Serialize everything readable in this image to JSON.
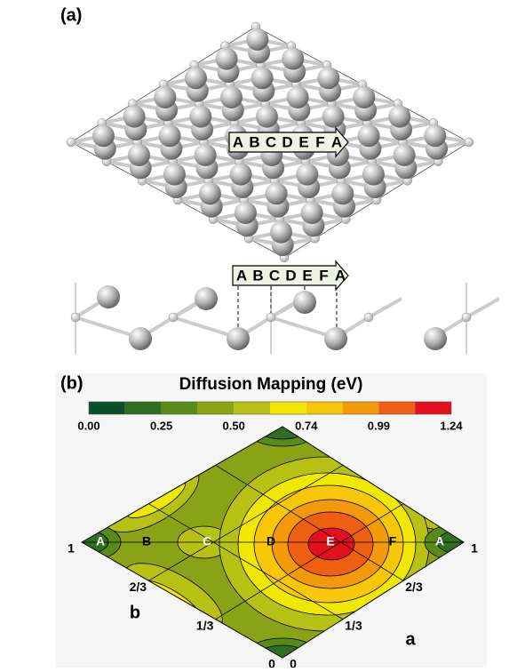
{
  "panel_a": {
    "label": "(a)",
    "top_view_arrow": [
      "A",
      "B",
      "C",
      "D",
      "E",
      "F",
      "A"
    ],
    "side_view_arrow": [
      "A",
      "B",
      "C",
      "D",
      "E",
      "F",
      "A"
    ]
  },
  "panel_b": {
    "label": "(b)",
    "title": "Diffusion Mapping (eV)",
    "colorbar": {
      "colors": [
        "#0a4f2a",
        "#2f6f1f",
        "#5a8a18",
        "#8aa316",
        "#b7c015",
        "#f0e800",
        "#f8c70a",
        "#f39a0c",
        "#ee5f12",
        "#e40f1f"
      ],
      "tick_labels": [
        "0.00",
        "0.25",
        "0.50",
        "0.74",
        "0.99",
        "1.24"
      ]
    },
    "sites": [
      "A",
      "B",
      "C",
      "D",
      "E",
      "F",
      "A"
    ],
    "axis_a": {
      "name": "a",
      "ticks": [
        "0",
        "1/3",
        "2/3",
        "1"
      ]
    },
    "axis_b": {
      "name": "b",
      "ticks": [
        "0",
        "1/3",
        "2/3",
        "1"
      ]
    }
  }
}
